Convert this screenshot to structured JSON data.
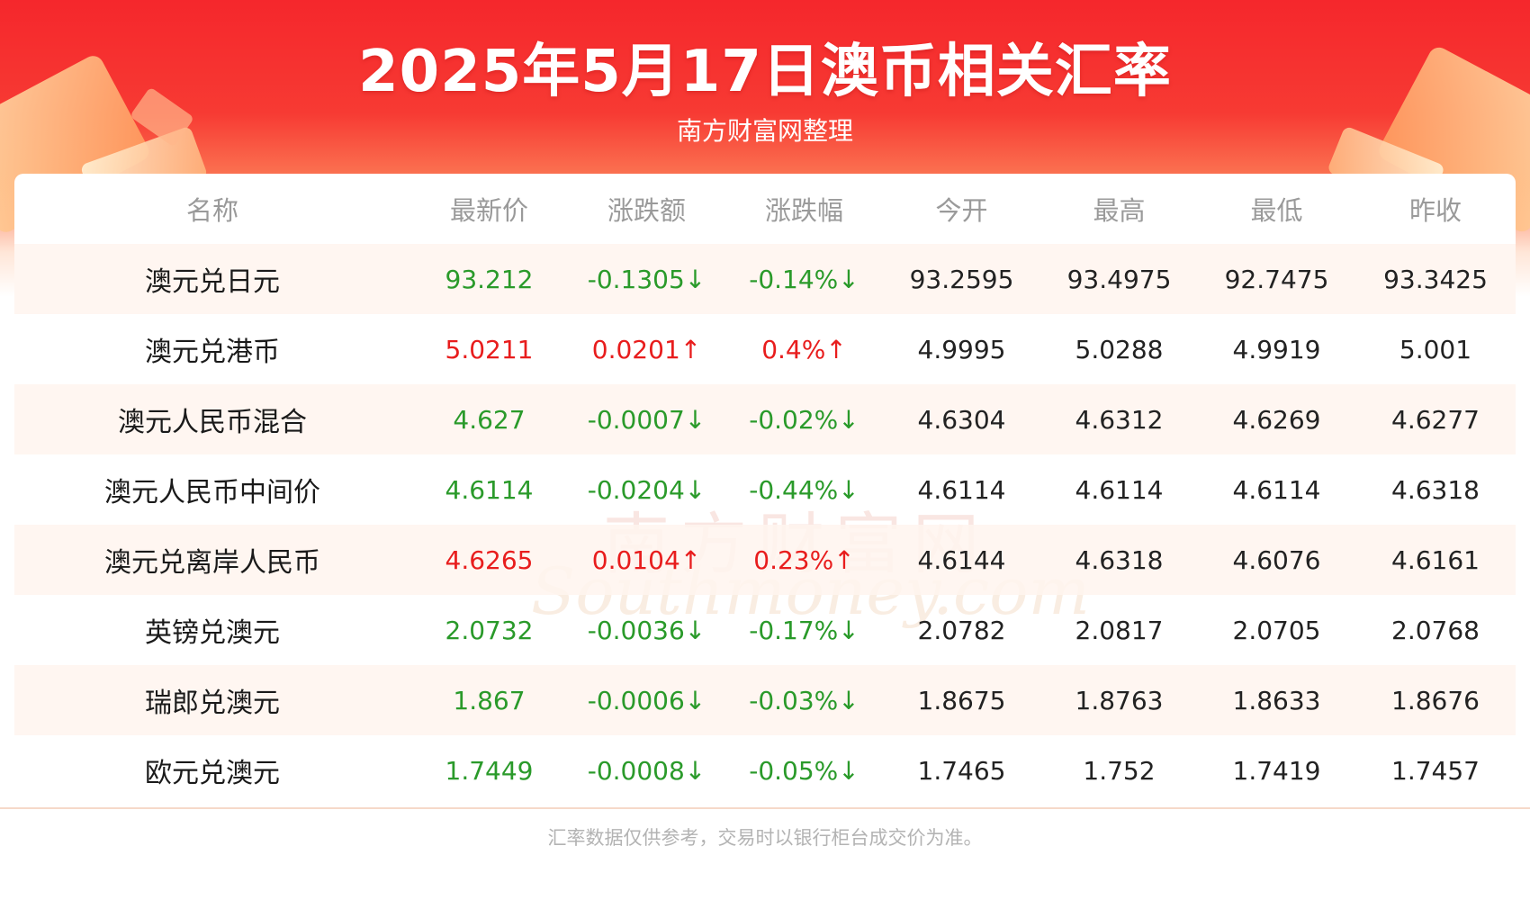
{
  "header": {
    "title": "2025年5月17日澳币相关汇率",
    "subtitle": "南方财富网整理"
  },
  "watermark": {
    "cn": "南方财富网",
    "en": "Southmoney.com"
  },
  "table": {
    "columns": [
      "名称",
      "最新价",
      "涨跌额",
      "涨跌幅",
      "今开",
      "最高",
      "最低",
      "昨收"
    ],
    "rows": [
      {
        "name": "澳元兑日元",
        "latest": "93.212",
        "change": "-0.1305↓",
        "change_pct": "-0.14%↓",
        "open": "93.2595",
        "high": "93.4975",
        "low": "92.7475",
        "prev_close": "93.3425",
        "direction": "down"
      },
      {
        "name": "澳元兑港币",
        "latest": "5.0211",
        "change": "0.0201↑",
        "change_pct": "0.4%↑",
        "open": "4.9995",
        "high": "5.0288",
        "low": "4.9919",
        "prev_close": "5.001",
        "direction": "up"
      },
      {
        "name": "澳元人民币混合",
        "latest": "4.627",
        "change": "-0.0007↓",
        "change_pct": "-0.02%↓",
        "open": "4.6304",
        "high": "4.6312",
        "low": "4.6269",
        "prev_close": "4.6277",
        "direction": "down"
      },
      {
        "name": "澳元人民币中间价",
        "latest": "4.6114",
        "change": "-0.0204↓",
        "change_pct": "-0.44%↓",
        "open": "4.6114",
        "high": "4.6114",
        "low": "4.6114",
        "prev_close": "4.6318",
        "direction": "down"
      },
      {
        "name": "澳元兑离岸人民币",
        "latest": "4.6265",
        "change": "0.0104↑",
        "change_pct": "0.23%↑",
        "open": "4.6144",
        "high": "4.6318",
        "low": "4.6076",
        "prev_close": "4.6161",
        "direction": "up"
      },
      {
        "name": "英镑兑澳元",
        "latest": "2.0732",
        "change": "-0.0036↓",
        "change_pct": "-0.17%↓",
        "open": "2.0782",
        "high": "2.0817",
        "low": "2.0705",
        "prev_close": "2.0768",
        "direction": "down"
      },
      {
        "name": "瑞郎兑澳元",
        "latest": "1.867",
        "change": "-0.0006↓",
        "change_pct": "-0.03%↓",
        "open": "1.8675",
        "high": "1.8763",
        "low": "1.8633",
        "prev_close": "1.8676",
        "direction": "down"
      },
      {
        "name": "欧元兑澳元",
        "latest": "1.7449",
        "change": "-0.0008↓",
        "change_pct": "-0.05%↓",
        "open": "1.7465",
        "high": "1.752",
        "low": "1.7419",
        "prev_close": "1.7457",
        "direction": "down"
      }
    ]
  },
  "footer": {
    "disclaimer": "汇率数据仅供参考，交易时以银行柜台成交价为准。"
  },
  "colors": {
    "header_red": "#f5272c",
    "up_red": "#e81d1d",
    "down_green": "#2a9a2a",
    "row_tint": "#fff4ee"
  }
}
